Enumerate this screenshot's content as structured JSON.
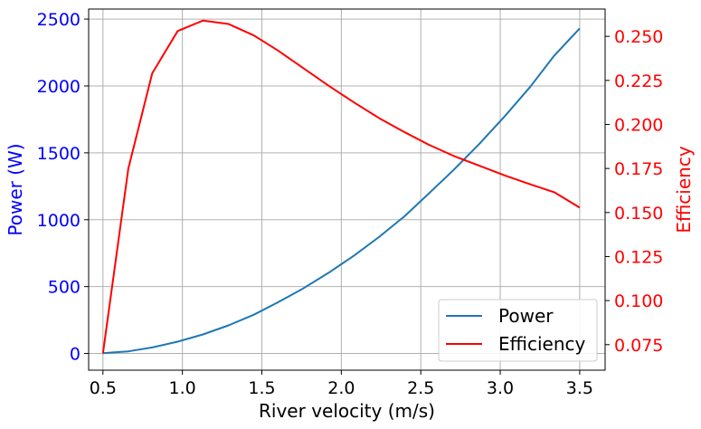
{
  "chart_data": {
    "type": "line",
    "title": "",
    "xlabel": "River velocity (m/s)",
    "ylabel_left": "Power (W)",
    "ylabel_right": "Efficiency",
    "xlim": [
      0.41,
      3.66
    ],
    "ylim_left": [
      -125,
      2575
    ],
    "ylim_right": [
      0.0605,
      0.2655
    ],
    "xticks": [
      0.5,
      1.0,
      1.5,
      2.0,
      2.5,
      3.0,
      3.5
    ],
    "xtick_labels": [
      "0.5",
      "1.0",
      "1.5",
      "2.0",
      "2.5",
      "3.0",
      "3.5"
    ],
    "yticks_left": [
      0,
      500,
      1000,
      1500,
      2000,
      2500
    ],
    "ytick_labels_left": [
      "0",
      "500",
      "1000",
      "1500",
      "2000",
      "2500"
    ],
    "yticks_right": [
      0.075,
      0.1,
      0.125,
      0.15,
      0.175,
      0.2,
      0.225,
      0.25
    ],
    "ytick_labels_right": [
      "0.075",
      "0.100",
      "0.125",
      "0.150",
      "0.175",
      "0.200",
      "0.225",
      "0.250"
    ],
    "grid": true,
    "legend_position": "bottom-right",
    "x": [
      0.5,
      0.66,
      0.81,
      0.97,
      1.13,
      1.29,
      1.45,
      1.6,
      1.76,
      1.92,
      2.08,
      2.24,
      2.4,
      2.55,
      2.71,
      2.87,
      3.03,
      3.19,
      3.34,
      3.5
    ],
    "series": [
      {
        "name": "Power",
        "axis": "left",
        "color": "#1f77b4",
        "values": [
          2,
          16,
          45,
          88,
          142,
          210,
          290,
          382,
          486,
          603,
          732,
          873,
          1028,
          1195,
          1376,
          1569,
          1775,
          1995,
          2227,
          2430
        ]
      },
      {
        "name": "Efficiency",
        "axis": "right",
        "color": "#ff0000",
        "values": [
          0.07,
          0.175,
          0.229,
          0.253,
          0.259,
          0.257,
          0.2505,
          0.242,
          0.232,
          0.222,
          0.2125,
          0.2035,
          0.1955,
          0.1885,
          0.182,
          0.1765,
          0.171,
          0.166,
          0.1615,
          0.1528
        ]
      }
    ],
    "colors": {
      "left_axis": "#0000ff",
      "right_axis": "#ff0000",
      "grid": "#b0b0b0"
    }
  }
}
